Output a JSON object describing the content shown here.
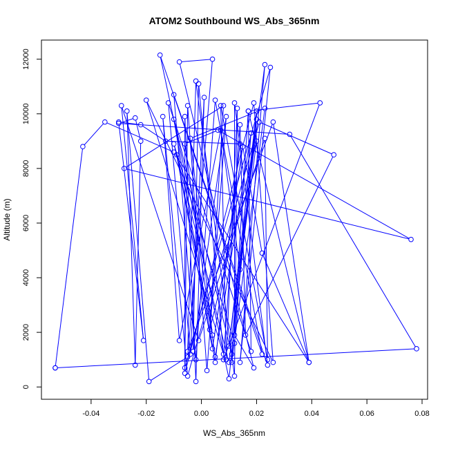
{
  "chart_data": {
    "type": "line",
    "title": "ATOM2 Southbound WS_Abs_365nm",
    "xlabel": "WS_Abs_365nm",
    "ylabel": "Altitude (m)",
    "xlim": [
      -0.058,
      0.082
    ],
    "ylim": [
      -450,
      12700
    ],
    "x_ticks": [
      "-0.04",
      "-0.02",
      "0.00",
      "0.02",
      "0.04",
      "0.06",
      "0.08"
    ],
    "y_ticks": [
      "0",
      "2000",
      "4000",
      "6000",
      "8000",
      "10000",
      "12000"
    ],
    "grid": false,
    "legend": "none",
    "markers": "open-circle",
    "color": "#0000ff",
    "series": [
      {
        "points": [
          [
            -0.053,
            700
          ],
          [
            0.078,
            1400
          ],
          [
            0.032,
            9250
          ],
          [
            -0.03,
            9650
          ],
          [
            -0.024,
            9850
          ],
          [
            -0.022,
            9000
          ],
          [
            -0.024,
            800
          ],
          [
            -0.027,
            10100
          ],
          [
            -0.019,
            200
          ],
          [
            -0.005,
            1100
          ],
          [
            0.004,
            12000
          ],
          [
            -0.008,
            11900
          ],
          [
            0.019,
            700
          ],
          [
            0.012,
            1900
          ],
          [
            0.012,
            10400
          ],
          [
            0.024,
            800
          ],
          [
            -0.01,
            10700
          ],
          [
            -0.002,
            1000
          ],
          [
            0.005,
            10500
          ],
          [
            0.022,
            1200
          ],
          [
            -0.015,
            12150
          ],
          [
            0.01,
            300
          ],
          [
            0.02,
            10100
          ],
          [
            0.01,
            1500
          ],
          [
            0.023,
            11800
          ],
          [
            0.014,
            900
          ],
          [
            0.025,
            11700
          ],
          [
            -0.006,
            700
          ],
          [
            -0.005,
            10300
          ],
          [
            0.002,
            600
          ],
          [
            0.009,
            9900
          ],
          [
            -0.003,
            1300
          ],
          [
            -0.001,
            11100
          ],
          [
            0.008,
            1200
          ],
          [
            -0.02,
            10500
          ],
          [
            0.026,
            900
          ],
          [
            0.019,
            10400
          ],
          [
            -0.006,
            500
          ],
          [
            -0.006,
            9900
          ],
          [
            -0.002,
            200
          ],
          [
            0.001,
            10600
          ],
          [
            -0.004,
            1200
          ],
          [
            -0.012,
            10400
          ],
          [
            0.018,
            1300
          ],
          [
            0.017,
            10100
          ],
          [
            0.039,
            900
          ],
          [
            0.026,
            9700
          ],
          [
            -0.005,
            1300
          ],
          [
            -0.002,
            11200
          ],
          [
            0.012,
            400
          ],
          [
            0.013,
            10200
          ],
          [
            0.009,
            1000
          ],
          [
            0.007,
            10300
          ],
          [
            0.024,
            1000
          ],
          [
            0.023,
            9100
          ],
          [
            -0.001,
            1700
          ],
          [
            -0.029,
            10300
          ],
          [
            -0.021,
            1700
          ],
          [
            -0.03,
            9700
          ],
          [
            -0.022,
            9600
          ],
          [
            -0.013,
            9000
          ],
          [
            0.014,
            8900
          ],
          [
            0.005,
            900
          ],
          [
            -0.01,
            9800
          ],
          [
            0.011,
            1200
          ],
          [
            0.02,
            9800
          ],
          [
            0.01,
            900
          ],
          [
            -0.01,
            8900
          ],
          [
            0.012,
            1600
          ],
          [
            0.018,
            9300
          ],
          [
            0.005,
            1100
          ],
          [
            -0.006,
            8900
          ],
          [
            0.006,
            9400
          ],
          [
            0.076,
            5400
          ],
          [
            -0.028,
            8000
          ],
          [
            0.008,
            10300
          ],
          [
            0.003,
            2100
          ],
          [
            0.02,
            9000
          ],
          [
            0.014,
            4300
          ],
          [
            0.007,
            9400
          ],
          [
            -0.008,
            1700
          ],
          [
            -0.014,
            9900
          ],
          [
            -0.005,
            400
          ],
          [
            0.021,
            9700
          ],
          [
            0.048,
            8500
          ],
          [
            0.016,
            1900
          ],
          [
            0.014,
            9600
          ],
          [
            0.008,
            1000
          ],
          [
            0.043,
            10400
          ],
          [
            0.017,
            10100
          ],
          [
            0.011,
            900
          ],
          [
            0.023,
            10200
          ],
          [
            -0.004,
            9100
          ],
          [
            0.004,
            1900
          ],
          [
            -0.009,
            8500
          ],
          [
            0.004,
            1400
          ],
          [
            0.015,
            8800
          ],
          [
            0.022,
            4900
          ],
          [
            0.039,
            900
          ],
          [
            -0.01,
            8600
          ],
          [
            -0.035,
            9700
          ],
          [
            -0.043,
            8800
          ],
          [
            -0.053,
            700
          ]
        ]
      }
    ]
  }
}
